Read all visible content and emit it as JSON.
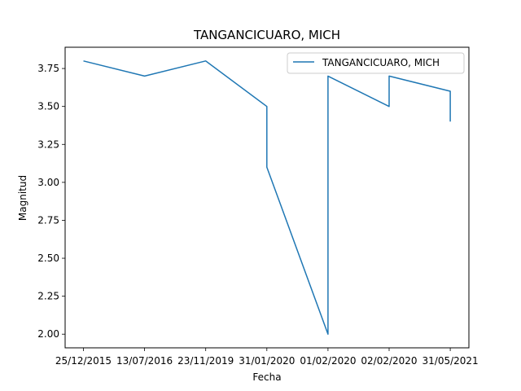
{
  "chart_data": {
    "type": "line",
    "title": "TANGANCICUARO, MICH",
    "xlabel": "Fecha",
    "ylabel": "Magnitud",
    "categories": [
      "25/12/2015",
      "13/07/2016",
      "23/11/2019",
      "31/01/2020",
      "01/02/2020",
      "02/02/2020",
      "31/05/2021"
    ],
    "points": [
      {
        "x": "25/12/2015",
        "y": 3.8
      },
      {
        "x": "13/07/2016",
        "y": 3.7
      },
      {
        "x": "23/11/2019",
        "y": 3.8
      },
      {
        "x": "31/01/2020",
        "y": 3.5
      },
      {
        "x": "31/01/2020",
        "y": 3.1
      },
      {
        "x": "01/02/2020",
        "y": 2.0
      },
      {
        "x": "01/02/2020",
        "y": 3.7
      },
      {
        "x": "02/02/2020",
        "y": 3.5
      },
      {
        "x": "02/02/2020",
        "y": 3.7
      },
      {
        "x": "31/05/2021",
        "y": 3.6
      },
      {
        "x": "31/05/2021",
        "y": 3.4
      }
    ],
    "series": [
      {
        "name": "TANGANCICUARO, MICH",
        "color": "#1f77b4"
      }
    ],
    "yticks": [
      "2.00",
      "2.25",
      "2.50",
      "2.75",
      "3.00",
      "3.25",
      "3.50",
      "3.75"
    ],
    "ylim": [
      1.91,
      3.89
    ],
    "grid": false,
    "legend_position": "top-right"
  }
}
